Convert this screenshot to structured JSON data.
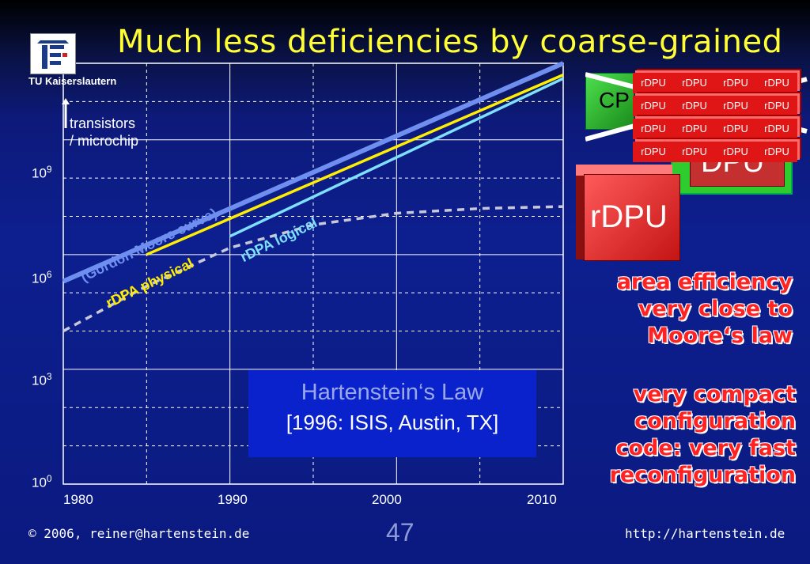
{
  "slide": {
    "title": "Much less deficiencies by coarse-grained",
    "logo_caption": "TU Kaiserslautern",
    "footer_copyright_symbol": "©",
    "footer_left": "2006, reiner@hartenstein.de",
    "page_number": "47",
    "footer_right": "http://hartenstein.de"
  },
  "chart_data": {
    "type": "line",
    "ylabel": "transistors\n/ microchip",
    "ylabel_line1": "transistors",
    "ylabel_line2": "/ microchip",
    "yscale": "log",
    "xlim": [
      1980,
      2010
    ],
    "ylim": [
      1,
      100000000000.0
    ],
    "x_ticks": [
      "1980",
      "1990",
      "2000",
      "2010"
    ],
    "y_ticks": [
      {
        "base": "10",
        "exp": "0"
      },
      {
        "base": "10",
        "exp": "3"
      },
      {
        "base": "10",
        "exp": "6"
      },
      {
        "base": "10",
        "exp": "9"
      }
    ],
    "grid": true,
    "series": [
      {
        "name": "(Gordon Moore curve)",
        "color": "#6f8ff0",
        "style": "solid",
        "x": [
          1980,
          2010
        ],
        "y": [
          200000,
          100000000000
        ]
      },
      {
        "name": "rDPA physical",
        "color": "#ffee00",
        "style": "solid",
        "x": [
          1985,
          2010
        ],
        "y": [
          1000000,
          50000000000
        ]
      },
      {
        "name": "rDPA logical",
        "color": "#7fdfff",
        "style": "solid",
        "x": [
          1990,
          2010
        ],
        "y": [
          3000000,
          40000000000
        ]
      },
      {
        "name": "",
        "color": "#c8c8d8",
        "style": "dashed",
        "x": [
          1980,
          1985,
          1990,
          1995,
          2000,
          2005,
          2010
        ],
        "y": [
          10000,
          150000,
          1500000,
          6000000,
          12000000,
          16000000,
          18000000
        ]
      }
    ]
  },
  "annotation_box": {
    "title": "Hartenstein‘s Law",
    "reference": "[1996: ISIS, Austin, TX]"
  },
  "side_notes": {
    "area_efficiency": [
      "area efficiency",
      "very close to",
      "Moore‘s law"
    ],
    "compact_config": [
      "very compact",
      "configuration",
      "code: very fast",
      "reconfiguration"
    ]
  },
  "illustration": {
    "cpu_label": "CP",
    "dpu_label": "DPU",
    "rdpu_big_label": "rDPU",
    "cell_label": "rDPU",
    "array_rows": 4,
    "array_cols": 4
  },
  "colors": {
    "title": "#ffff33",
    "background": "#0d1f8f",
    "side_text": "#ff2222",
    "box": "#0a22cc"
  }
}
